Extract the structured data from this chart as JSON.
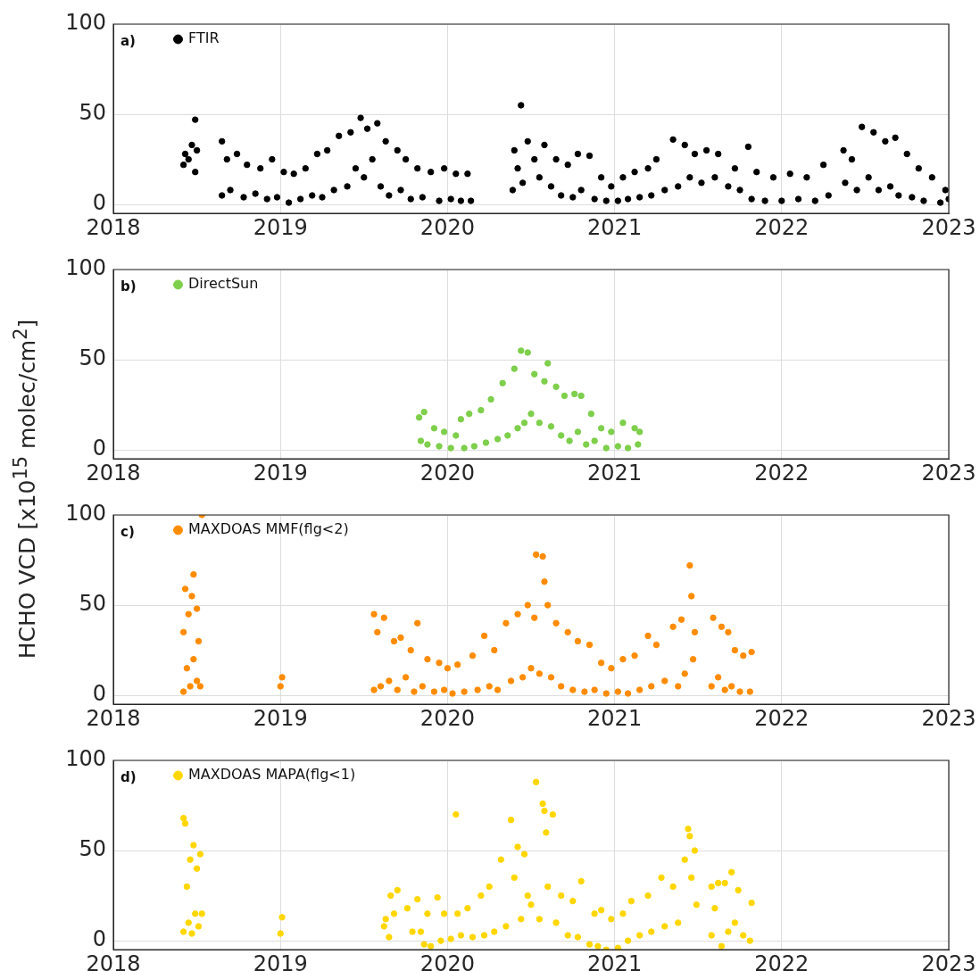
{
  "chart_data": [
    {
      "type": "scatter",
      "annotations": [
        "a)"
      ],
      "xlim": [
        2018,
        2023
      ],
      "xticks": [
        2018,
        2019,
        2020,
        2021,
        2022,
        2023
      ],
      "ylim": [
        -5,
        100
      ],
      "yticks": [
        0,
        50,
        100
      ],
      "grid": true,
      "legend": "top left",
      "marker": "circle",
      "series": [
        {
          "name": "FTIR",
          "color": "#000000",
          "x": [
            2018.42,
            2018.43,
            2018.45,
            2018.47,
            2018.49,
            2018.49,
            2018.5,
            2018.65,
            2018.65,
            2018.68,
            2018.7,
            2018.74,
            2018.78,
            2018.8,
            2018.85,
            2018.88,
            2018.92,
            2018.95,
            2018.98,
            2019.02,
            2019.05,
            2019.08,
            2019.12,
            2019.15,
            2019.19,
            2019.22,
            2019.25,
            2019.28,
            2019.32,
            2019.35,
            2019.4,
            2019.42,
            2019.45,
            2019.48,
            2019.5,
            2019.52,
            2019.55,
            2019.58,
            2019.6,
            2019.63,
            2019.65,
            2019.7,
            2019.72,
            2019.75,
            2019.78,
            2019.82,
            2019.85,
            2019.9,
            2019.95,
            2019.98,
            2020.02,
            2020.05,
            2020.08,
            2020.12,
            2020.14,
            2020.39,
            2020.4,
            2020.42,
            2020.44,
            2020.45,
            2020.48,
            2020.52,
            2020.55,
            2020.58,
            2020.62,
            2020.65,
            2020.68,
            2020.72,
            2020.75,
            2020.78,
            2020.8,
            2020.85,
            2020.88,
            2020.92,
            2020.95,
            2020.98,
            2021.02,
            2021.05,
            2021.08,
            2021.12,
            2021.15,
            2021.2,
            2021.22,
            2021.25,
            2021.3,
            2021.35,
            2021.38,
            2021.42,
            2021.45,
            2021.48,
            2021.52,
            2021.55,
            2021.6,
            2021.62,
            2021.68,
            2021.72,
            2021.75,
            2021.8,
            2021.82,
            2021.85,
            2021.9,
            2021.95,
            2022.0,
            2022.05,
            2022.1,
            2022.15,
            2022.2,
            2022.25,
            2022.28,
            2022.37,
            2022.38,
            2022.42,
            2022.45,
            2022.48,
            2022.52,
            2022.55,
            2022.58,
            2022.62,
            2022.65,
            2022.68,
            2022.7,
            2022.75,
            2022.78,
            2022.82,
            2022.85,
            2022.9,
            2022.95,
            2022.98,
            2023.0
          ],
          "values": [
            22,
            28,
            25,
            33,
            47,
            18,
            30,
            35,
            5,
            25,
            8,
            28,
            4,
            22,
            6,
            20,
            3,
            25,
            4,
            18,
            1,
            17,
            3,
            20,
            5,
            28,
            4,
            30,
            8,
            38,
            10,
            40,
            20,
            48,
            15,
            42,
            25,
            45,
            10,
            35,
            5,
            30,
            8,
            25,
            3,
            20,
            4,
            18,
            2,
            20,
            3,
            17,
            2,
            17,
            2,
            8,
            30,
            20,
            55,
            12,
            35,
            25,
            15,
            33,
            10,
            25,
            5,
            22,
            4,
            28,
            8,
            27,
            3,
            15,
            2,
            10,
            2,
            15,
            3,
            18,
            4,
            20,
            5,
            25,
            8,
            36,
            10,
            33,
            15,
            28,
            12,
            30,
            15,
            28,
            10,
            20,
            8,
            32,
            3,
            18,
            2,
            15,
            2,
            17,
            3,
            15,
            2,
            22,
            5,
            30,
            12,
            25,
            8,
            43,
            15,
            40,
            8,
            35,
            10,
            37,
            5,
            28,
            4,
            20,
            2,
            15,
            1,
            8,
            3
          ]
        }
      ]
    },
    {
      "type": "scatter",
      "annotations": [
        "b)"
      ],
      "xlim": [
        2018,
        2023
      ],
      "xticks": [
        2018,
        2019,
        2020,
        2021,
        2022,
        2023
      ],
      "ylim": [
        -5,
        100
      ],
      "yticks": [
        0,
        50,
        100
      ],
      "grid": true,
      "legend": "top left",
      "marker": "circle",
      "series": [
        {
          "name": "DirectSun",
          "color": "#7ecf4b",
          "x": [
            2019.83,
            2019.84,
            2019.86,
            2019.88,
            2019.92,
            2019.95,
            2019.98,
            2020.02,
            2020.05,
            2020.08,
            2020.1,
            2020.13,
            2020.16,
            2020.2,
            2020.23,
            2020.26,
            2020.3,
            2020.33,
            2020.36,
            2020.4,
            2020.42,
            2020.44,
            2020.46,
            2020.48,
            2020.5,
            2020.52,
            2020.55,
            2020.58,
            2020.6,
            2020.62,
            2020.65,
            2020.68,
            2020.7,
            2020.73,
            2020.76,
            2020.78,
            2020.8,
            2020.83,
            2020.86,
            2020.88,
            2020.92,
            2020.95,
            2020.98,
            2021.02,
            2021.05,
            2021.08,
            2021.12,
            2021.14,
            2021.15
          ],
          "values": [
            18,
            5,
            21,
            3,
            12,
            2,
            10,
            1,
            8,
            17,
            1,
            20,
            2,
            22,
            4,
            28,
            6,
            37,
            8,
            45,
            12,
            55,
            15,
            54,
            20,
            42,
            15,
            38,
            48,
            13,
            35,
            8,
            30,
            5,
            31,
            10,
            30,
            3,
            20,
            5,
            12,
            1,
            10,
            2,
            15,
            1,
            12,
            3,
            10
          ]
        }
      ]
    },
    {
      "type": "scatter",
      "annotations": [
        "c)"
      ],
      "ylabel": "HCHO VCD  [x10$^{15}$ molec/cm$^{2}$]",
      "xlim": [
        2018,
        2023
      ],
      "xticks": [
        2018,
        2019,
        2020,
        2021,
        2022,
        2023
      ],
      "ylim": [
        -5,
        100
      ],
      "yticks": [
        0,
        50,
        100
      ],
      "grid": true,
      "legend": "top left",
      "marker": "circle",
      "series": [
        {
          "name": "MAXDOAS MMF(flg<2)",
          "color": "#ff8c00",
          "x": [
            2018.42,
            2018.42,
            2018.43,
            2018.44,
            2018.45,
            2018.46,
            2018.47,
            2018.48,
            2018.48,
            2018.5,
            2018.5,
            2018.51,
            2018.52,
            2018.53,
            2019.0,
            2019.01,
            2019.56,
            2019.56,
            2019.58,
            2019.6,
            2019.62,
            2019.65,
            2019.68,
            2019.7,
            2019.72,
            2019.75,
            2019.78,
            2019.8,
            2019.82,
            2019.85,
            2019.88,
            2019.92,
            2019.95,
            2019.98,
            2020.0,
            2020.03,
            2020.06,
            2020.1,
            2020.15,
            2020.18,
            2020.22,
            2020.25,
            2020.28,
            2020.3,
            2020.35,
            2020.38,
            2020.42,
            2020.45,
            2020.48,
            2020.5,
            2020.52,
            2020.53,
            2020.55,
            2020.57,
            2020.58,
            2020.6,
            2020.62,
            2020.65,
            2020.68,
            2020.72,
            2020.75,
            2020.78,
            2020.82,
            2020.85,
            2020.88,
            2020.92,
            2020.95,
            2020.98,
            2021.02,
            2021.05,
            2021.08,
            2021.12,
            2021.15,
            2021.2,
            2021.22,
            2021.25,
            2021.3,
            2021.35,
            2021.38,
            2021.4,
            2021.42,
            2021.45,
            2021.46,
            2021.47,
            2021.48,
            2021.58,
            2021.59,
            2021.62,
            2021.64,
            2021.66,
            2021.68,
            2021.7,
            2021.72,
            2021.75,
            2021.77,
            2021.81,
            2021.82
          ],
          "values": [
            2,
            35,
            59,
            15,
            45,
            5,
            55,
            20,
            67,
            8,
            48,
            30,
            5,
            100,
            5,
            10,
            3,
            45,
            35,
            5,
            43,
            8,
            30,
            3,
            32,
            10,
            25,
            2,
            40,
            5,
            20,
            2,
            18,
            3,
            15,
            1,
            17,
            2,
            22,
            3,
            33,
            5,
            25,
            3,
            40,
            8,
            45,
            10,
            50,
            15,
            43,
            78,
            12,
            77,
            63,
            50,
            10,
            40,
            5,
            35,
            3,
            30,
            2,
            28,
            3,
            18,
            1,
            15,
            2,
            20,
            1,
            22,
            3,
            33,
            5,
            28,
            8,
            38,
            5,
            42,
            12,
            72,
            55,
            20,
            35,
            5,
            43,
            10,
            38,
            3,
            35,
            5,
            25,
            2,
            22,
            2,
            24
          ]
        }
      ]
    },
    {
      "type": "scatter",
      "annotations": [
        "d)"
      ],
      "xlim": [
        2018,
        2023
      ],
      "xticks": [
        2018,
        2019,
        2020,
        2021,
        2022,
        2023
      ],
      "ylim": [
        -5,
        100
      ],
      "yticks": [
        0,
        50,
        100
      ],
      "grid": true,
      "legend": "top left",
      "marker": "circle",
      "series": [
        {
          "name": "MAXDOAS MAPA(flg<1)",
          "color": "#ffd700",
          "x": [
            2018.42,
            2018.42,
            2018.43,
            2018.44,
            2018.45,
            2018.46,
            2018.47,
            2018.48,
            2018.49,
            2018.5,
            2018.51,
            2018.52,
            2018.53,
            2019.0,
            2019.01,
            2019.62,
            2019.63,
            2019.65,
            2019.66,
            2019.68,
            2019.7,
            2019.76,
            2019.79,
            2019.82,
            2019.84,
            2019.86,
            2019.88,
            2019.9,
            2019.94,
            2019.96,
            2019.98,
            2020.02,
            2020.05,
            2020.06,
            2020.08,
            2020.12,
            2020.15,
            2020.2,
            2020.22,
            2020.25,
            2020.28,
            2020.32,
            2020.35,
            2020.38,
            2020.4,
            2020.42,
            2020.44,
            2020.46,
            2020.48,
            2020.5,
            2020.53,
            2020.55,
            2020.57,
            2020.58,
            2020.59,
            2020.6,
            2020.63,
            2020.65,
            2020.68,
            2020.72,
            2020.75,
            2020.78,
            2020.8,
            2020.85,
            2020.88,
            2020.9,
            2020.92,
            2020.95,
            2020.98,
            2021.02,
            2021.05,
            2021.08,
            2021.1,
            2021.15,
            2021.2,
            2021.22,
            2021.28,
            2021.3,
            2021.35,
            2021.38,
            2021.42,
            2021.44,
            2021.45,
            2021.46,
            2021.48,
            2021.49,
            2021.58,
            2021.58,
            2021.6,
            2021.62,
            2021.64,
            2021.66,
            2021.68,
            2021.7,
            2021.72,
            2021.74,
            2021.77,
            2021.81,
            2021.82
          ],
          "values": [
            5,
            68,
            65,
            30,
            10,
            45,
            4,
            53,
            15,
            40,
            8,
            48,
            15,
            4,
            13,
            8,
            12,
            2,
            25,
            15,
            28,
            18,
            5,
            23,
            5,
            -2,
            15,
            -3,
            24,
            0,
            15,
            1,
            70,
            15,
            3,
            18,
            2,
            25,
            3,
            30,
            5,
            45,
            8,
            67,
            35,
            52,
            12,
            48,
            25,
            20,
            88,
            12,
            76,
            72,
            60,
            30,
            70,
            10,
            25,
            3,
            22,
            2,
            33,
            -2,
            15,
            -3,
            17,
            -5,
            12,
            -4,
            15,
            0,
            22,
            3,
            25,
            5,
            35,
            8,
            30,
            10,
            45,
            62,
            58,
            35,
            50,
            20,
            3,
            30,
            18,
            32,
            -3,
            32,
            5,
            38,
            10,
            28,
            3,
            0,
            21
          ]
        }
      ]
    }
  ]
}
